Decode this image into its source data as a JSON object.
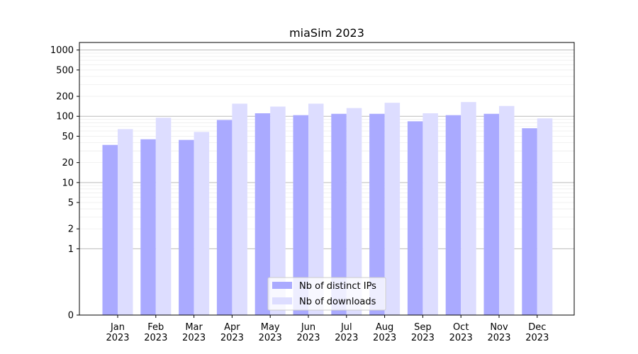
{
  "chart_data": {
    "type": "bar",
    "title": "miaSim 2023",
    "xlabel": "",
    "ylabel": "",
    "y_scale": "symlog",
    "ylim": [
      0,
      1300
    ],
    "y_ticks": [
      0,
      1,
      2,
      5,
      10,
      20,
      50,
      100,
      200,
      500,
      1000
    ],
    "categories": [
      "Jan\n2023",
      "Feb\n2023",
      "Mar\n2023",
      "Apr\n2023",
      "May\n2023",
      "Jun\n2023",
      "Jul\n2023",
      "Aug\n2023",
      "Sep\n2023",
      "Oct\n2023",
      "Nov\n2023",
      "Dec\n2023"
    ],
    "series": [
      {
        "name": "Nb of distinct IPs",
        "color": "#aaaaff",
        "values": [
          37,
          45,
          44,
          88,
          111,
          104,
          109,
          109,
          84,
          104,
          109,
          66
        ]
      },
      {
        "name": "Nb of downloads",
        "color": "#ddddff",
        "values": [
          64,
          95,
          58,
          155,
          140,
          155,
          133,
          160,
          111,
          164,
          143,
          93
        ]
      }
    ],
    "grid": true,
    "legend_position": "bottom-center"
  }
}
